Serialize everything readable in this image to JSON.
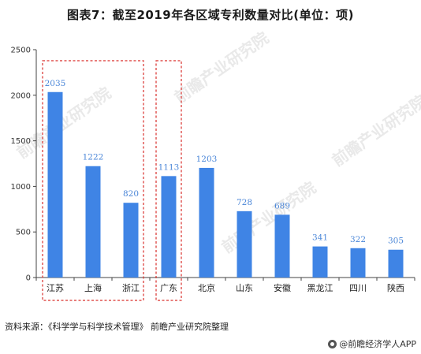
{
  "title": "图表7：截至2019年各区域专利数量对比(单位：项)",
  "source": "资料来源：《科学学与科学技术管理》 前瞻产业研究院整理",
  "brand": "@前瞻经济学人APP",
  "watermark": "前瞻产业研究院",
  "colors": {
    "bar": "#3f84e5",
    "label": "#4a86d8",
    "highlight_box": "#d9302c"
  },
  "chart_data": {
    "type": "bar",
    "title": "图表7：截至2019年各区域专利数量对比(单位：项)",
    "xlabel": "",
    "ylabel": "",
    "categories": [
      "江苏",
      "上海",
      "浙江",
      "广东",
      "北京",
      "山东",
      "安徽",
      "黑龙江",
      "四川",
      "陕西"
    ],
    "values": [
      2035,
      1222,
      820,
      1113,
      1203,
      728,
      689,
      341,
      322,
      305
    ],
    "ylim": [
      0,
      2500
    ],
    "yticks": [
      0,
      500,
      1000,
      1500,
      2000,
      2500
    ],
    "grid": false,
    "highlight_groups": [
      [
        "江苏",
        "上海",
        "浙江"
      ],
      [
        "广东"
      ]
    ]
  }
}
